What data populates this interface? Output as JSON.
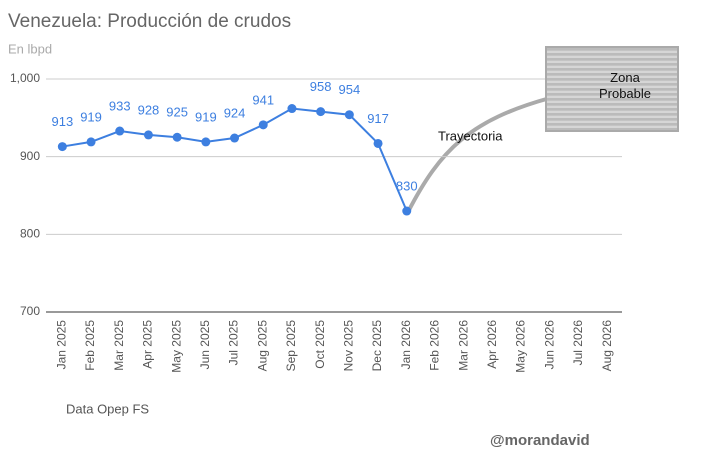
{
  "chart_data": {
    "type": "line",
    "title": "Venezuela: Producción de crudos",
    "subtitle": "En lbpd",
    "categories": [
      "Jan 2025",
      "Feb 2025",
      "Mar 2025",
      "Apr 2025",
      "May 2025",
      "Jun 2025",
      "Jul 2025",
      "Aug 2025",
      "Sep 2025",
      "Oct 2025",
      "Nov 2025",
      "Dec 2025",
      "Jan 2026",
      "Feb 2026",
      "Mar 2026",
      "Apr 2026",
      "May 2026",
      "Jun 2026",
      "Jul 2026",
      "Aug 2026"
    ],
    "values": [
      913,
      919,
      933,
      928,
      925,
      919,
      924,
      941,
      962,
      958,
      954,
      917,
      830,
      null,
      null,
      null,
      null,
      null,
      null,
      null
    ],
    "value_labels": [
      "913",
      "919",
      "933",
      "928",
      "925",
      "919",
      "924",
      "941",
      null,
      "958",
      "954",
      "917",
      "830",
      null,
      null,
      null,
      null,
      null,
      null,
      null
    ],
    "color": "#3d7fe0",
    "ylim": [
      700,
      1000
    ],
    "yticks": [
      700,
      800,
      900,
      {
        "value": 1000,
        "label": "1,000"
      }
    ],
    "grid": true,
    "annotations": {
      "trajectory": "Trayectoria",
      "zone": "Zona Probable",
      "source": "Data Opep FS",
      "credit": "@morandavid"
    }
  }
}
